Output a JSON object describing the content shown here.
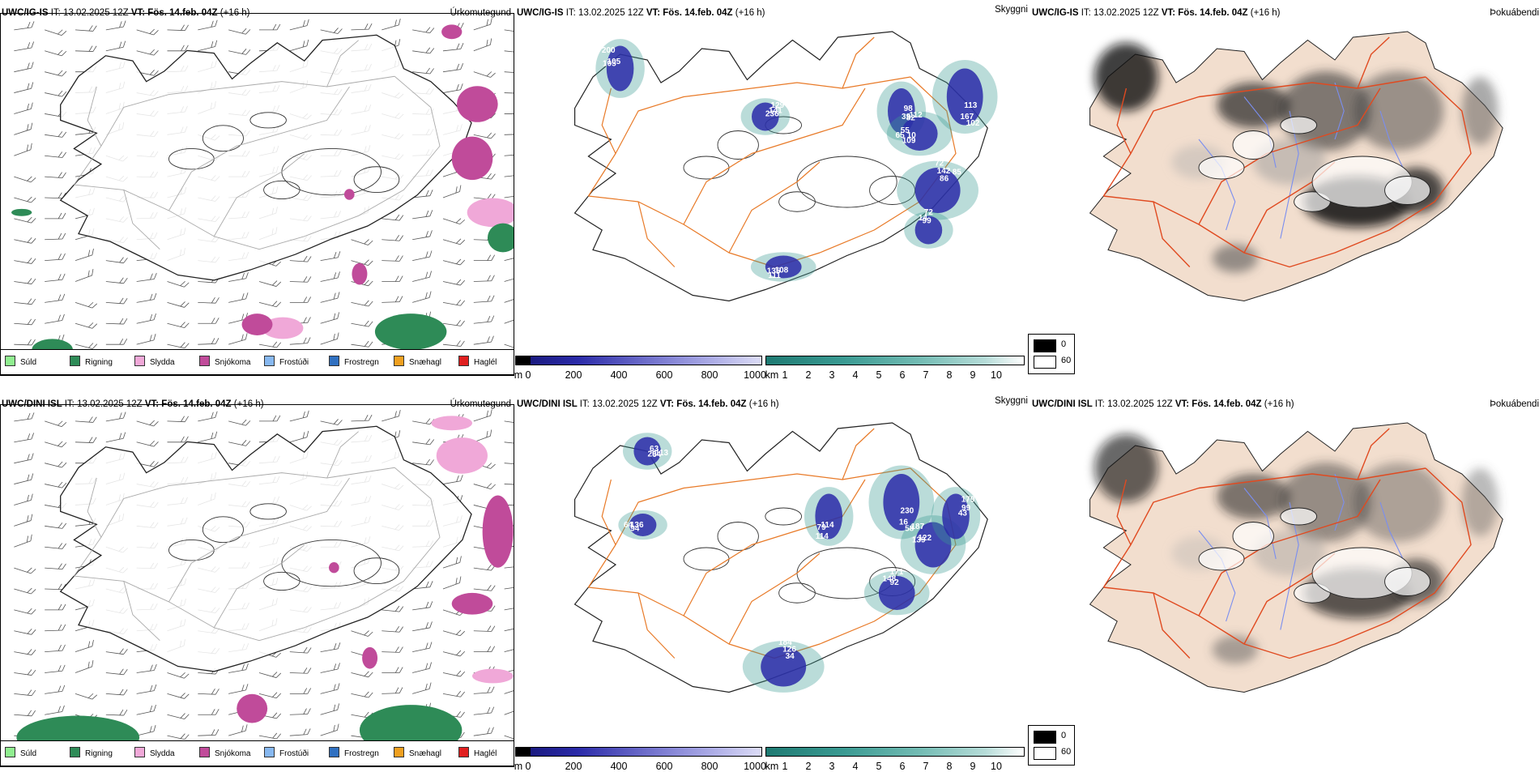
{
  "rows": [
    {
      "model": "UWC/IG-IS",
      "it_label": "IT:",
      "it_value": "13.02.2025 12Z",
      "vt_label": "VT:",
      "vt_value": "Fös. 14.feb. 04Z",
      "lead": "(+16 h)",
      "precip_title": "Úrkomutegund",
      "vis_title": "Skyggni",
      "fog_title": "Þokuábendi",
      "vis_labels": [
        "98",
        "109",
        "72",
        "113",
        "105",
        "129",
        "108",
        "14",
        "112",
        "10",
        "142",
        "102",
        "105",
        "141",
        "111",
        "99",
        "82",
        "65",
        "86",
        "167",
        "200",
        "236",
        "135",
        "72",
        "39",
        "55",
        "85"
      ]
    },
    {
      "model": "UWC/DINI ISL",
      "it_label": "IT:",
      "it_value": "13.02.2025 12Z",
      "vt_label": "VT:",
      "vt_value": "Fös. 14.feb. 04Z",
      "lead": "(+16 h)",
      "precip_title": "Úrkomutegund",
      "vis_title": "Skyggni",
      "fog_title": "Þokuábendi",
      "vis_labels": [
        "63",
        "94",
        "184",
        "230",
        "139",
        "179",
        "114",
        "148",
        "113",
        "136",
        "126",
        "58",
        "122",
        "99",
        "114",
        "92",
        "64",
        "64",
        "34",
        "16",
        "187",
        "43",
        "79",
        "171",
        "29"
      ]
    }
  ],
  "precip_legend": [
    {
      "label": "Súld",
      "color": "#90ee90"
    },
    {
      "label": "Rigning",
      "color": "#2e8b57"
    },
    {
      "label": "Slydda",
      "color": "#f0a8d8"
    },
    {
      "label": "Snjókoma",
      "color": "#c04b9a"
    },
    {
      "label": "Frostúði",
      "color": "#87b8f0"
    },
    {
      "label": "Frostregn",
      "color": "#3070c0"
    },
    {
      "label": "Snæhagl",
      "color": "#f0a020"
    },
    {
      "label": "Haglél",
      "color": "#e02020"
    }
  ],
  "ceiling_scale": {
    "unit": "m",
    "ticks": [
      "0",
      "200",
      "400",
      "600",
      "800",
      "1000"
    ]
  },
  "visibility_scale": {
    "unit": "km",
    "ticks": [
      "1",
      "2",
      "3",
      "4",
      "5",
      "6",
      "7",
      "8",
      "9",
      "10"
    ]
  },
  "fog_legend": [
    {
      "label": "0"
    },
    {
      "label": "60"
    }
  ],
  "colors": {
    "rain": "#2e8b57",
    "sleet": "#f0a8d8",
    "snow": "#c04b9a",
    "ceiling_blue": "#2a2aa8",
    "vis_teal": "#3a9a92",
    "road": "#e87a28",
    "land_fog": "#f2dece",
    "fog_road": "#e04a20",
    "river": "#7a8ef0"
  }
}
